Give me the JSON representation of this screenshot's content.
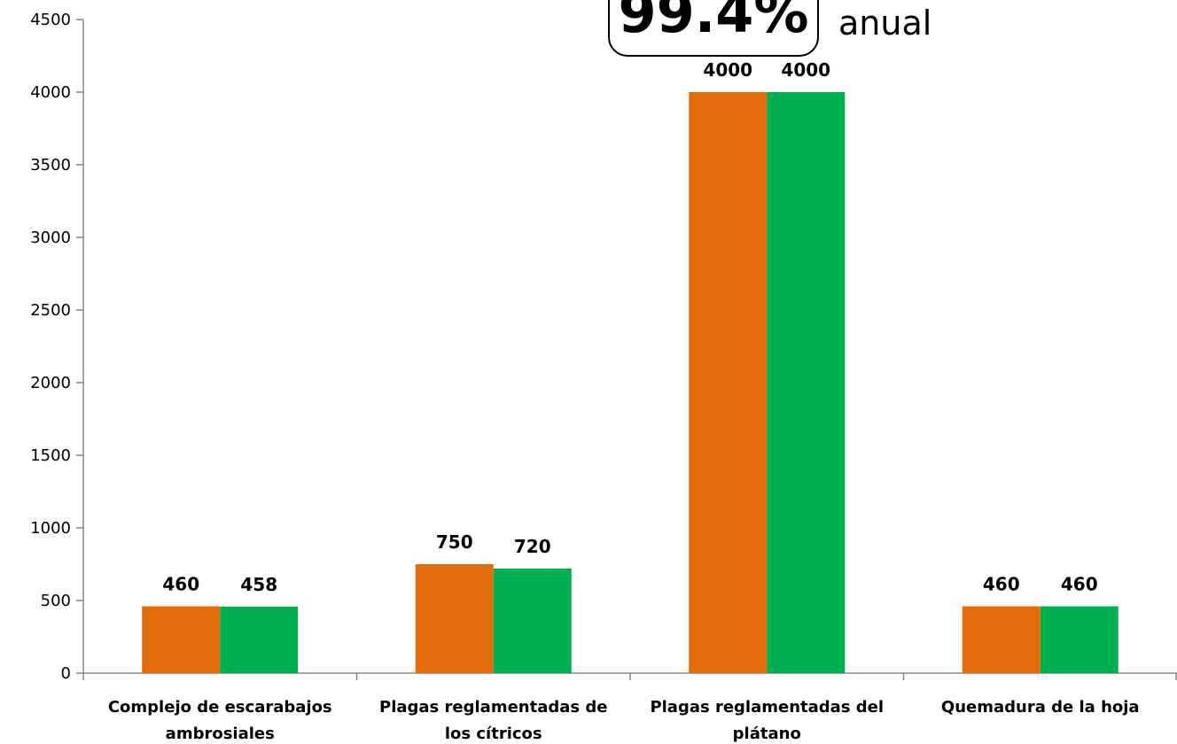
{
  "chart_data": {
    "type": "bar",
    "title": "",
    "xlabel": "",
    "ylabel": "",
    "ylim": [
      0,
      4500
    ],
    "yticks": [
      0,
      500,
      1000,
      1500,
      2000,
      2500,
      3000,
      3500,
      4000,
      4500
    ],
    "grid": false,
    "legend": "none",
    "categories": [
      [
        "Complejo de escarabajos",
        "ambrosiales"
      ],
      [
        "Plagas reglamentadas de",
        "los cítricos"
      ],
      [
        "Plagas reglamentadas del",
        "plátano"
      ],
      [
        "Quemadura de la hoja"
      ]
    ],
    "series": [
      {
        "color": "#E36C0A",
        "values": [
          460,
          750,
          4000,
          460
        ]
      },
      {
        "color": "#00B050",
        "values": [
          458,
          720,
          4000,
          460
        ]
      }
    ],
    "data_labels": true
  },
  "callout": {
    "value": "99.4%",
    "note": "anual"
  }
}
